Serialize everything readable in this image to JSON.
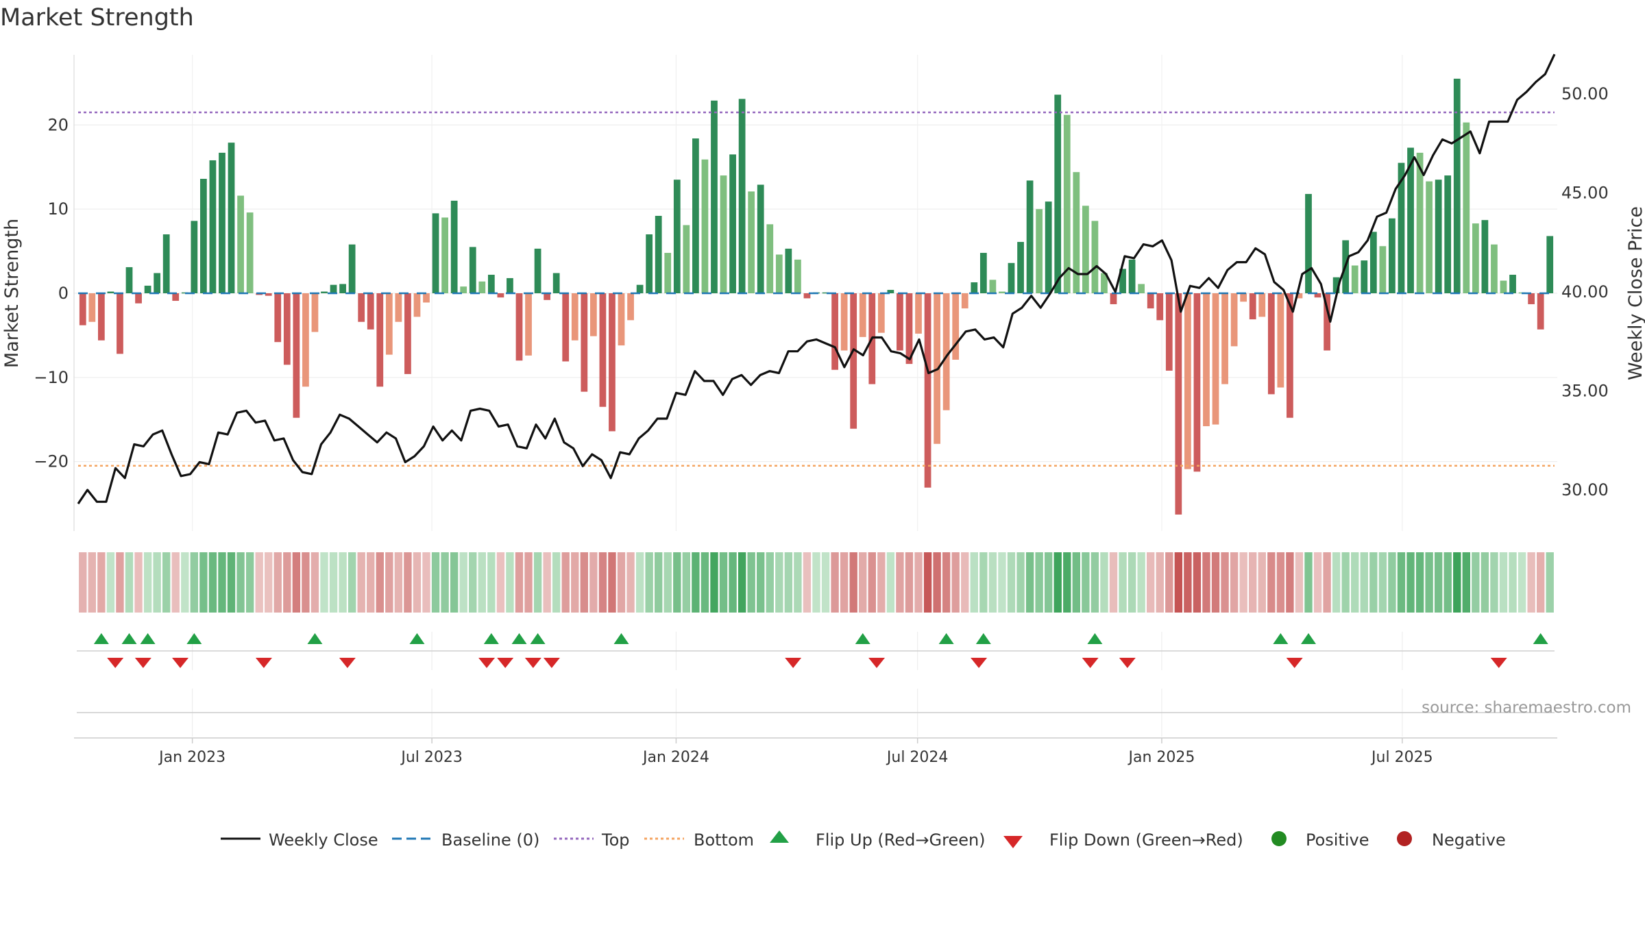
{
  "title": "Market Strength",
  "source": "source: sharemaestro.com",
  "chart_data": {
    "type": "bar+line",
    "title": "Market Strength",
    "ylabel_left": "Market Strength",
    "ylabel_right": "Weekly Close Price",
    "left_ylim": [
      -28,
      28
    ],
    "right_ylim": [
      28.0,
      51.0
    ],
    "left_yticks": [
      20,
      10,
      0,
      -10,
      -20
    ],
    "left_ytick_labels": [
      "20",
      "10",
      "0",
      "−10",
      "−20"
    ],
    "right_yticks": [
      50,
      45,
      40,
      35,
      30
    ],
    "right_ytick_labels": [
      "50.00",
      "45.00",
      "40.00",
      "35.00",
      "30.00"
    ],
    "top_level": 21.5,
    "bottom_level": -20.5,
    "x_start": "2022-10-10",
    "x_ticks": [
      {
        "label": "Jan 2023",
        "week": 12.3
      },
      {
        "label": "Jul 2023",
        "week": 38.1
      },
      {
        "label": "Jan 2024",
        "week": 64.4
      },
      {
        "label": "Jul 2024",
        "week": 90.4
      },
      {
        "label": "Jan 2025",
        "week": 116.7
      },
      {
        "label": "Jul 2025",
        "week": 142.6
      }
    ],
    "strength": [
      -3.8,
      -3.4,
      -5.6,
      0.2,
      -7.2,
      3.1,
      -1.2,
      0.9,
      2.4,
      7.0,
      -0.9,
      0.1,
      8.6,
      13.6,
      15.8,
      16.7,
      17.9,
      11.6,
      9.6,
      -0.2,
      -0.3,
      -5.8,
      -8.5,
      -14.8,
      -11.1,
      -4.6,
      0.2,
      1.0,
      1.1,
      5.8,
      -3.4,
      -4.3,
      -11.1,
      -7.3,
      -3.4,
      -9.6,
      -2.8,
      -1.1,
      9.5,
      9.0,
      11.0,
      0.8,
      5.5,
      1.4,
      2.2,
      -0.5,
      1.8,
      -8.0,
      -7.4,
      5.3,
      -0.8,
      2.4,
      -8.1,
      -5.6,
      -11.7,
      -5.1,
      -13.5,
      -16.4,
      -6.2,
      -3.2,
      1.0,
      7.0,
      9.2,
      4.8,
      13.5,
      8.1,
      18.4,
      15.9,
      22.9,
      14.0,
      16.5,
      23.1,
      12.1,
      12.9,
      8.2,
      4.6,
      5.3,
      4.0,
      -0.6,
      0.1,
      0.1,
      -9.1,
      -6.8,
      -16.1,
      -5.2,
      -10.8,
      -4.7,
      0.4,
      -6.8,
      -8.4,
      -4.8,
      -23.1,
      -17.9,
      -13.9,
      -7.9,
      -1.8,
      1.3,
      4.8,
      1.6,
      0.2,
      3.6,
      6.1,
      13.4,
      10.0,
      10.9,
      23.6,
      21.2,
      14.4,
      10.4,
      8.6,
      2.4,
      -1.3,
      2.9,
      4.0,
      1.1,
      -1.8,
      -3.2,
      -9.2,
      -26.3,
      -20.9,
      -21.2,
      -15.8,
      -15.6,
      -10.8,
      -6.3,
      -1.0,
      -3.1,
      -2.8,
      -12.0,
      -11.2,
      -14.8,
      -0.6,
      11.8,
      -0.5,
      -6.8,
      1.9,
      6.3,
      3.3,
      3.9,
      7.3,
      5.6,
      8.9,
      15.5,
      17.3,
      16.7,
      13.3,
      13.5,
      14.0,
      25.5,
      20.3,
      8.3,
      8.7,
      5.8,
      1.5,
      2.2,
      0.1,
      -1.3,
      -4.3,
      6.8
    ],
    "weekly_close": [
      29.3,
      30.0,
      29.4,
      29.4,
      31.1,
      30.6,
      32.3,
      32.2,
      32.8,
      33.0,
      31.8,
      30.7,
      30.8,
      31.4,
      31.3,
      32.9,
      32.8,
      33.9,
      34.0,
      33.4,
      33.5,
      32.5,
      32.6,
      31.5,
      30.9,
      30.8,
      32.3,
      32.9,
      33.8,
      33.6,
      33.2,
      32.8,
      32.4,
      32.9,
      32.6,
      31.4,
      31.7,
      32.2,
      33.2,
      32.5,
      33.0,
      32.5,
      34.0,
      34.1,
      34.0,
      33.2,
      33.3,
      32.2,
      32.1,
      33.3,
      32.6,
      33.6,
      32.4,
      32.1,
      31.2,
      31.8,
      31.5,
      30.6,
      31.9,
      31.8,
      32.6,
      33.0,
      33.6,
      33.6,
      34.9,
      34.8,
      36.0,
      35.5,
      35.5,
      34.8,
      35.6,
      35.8,
      35.3,
      35.8,
      36.0,
      35.9,
      37.0,
      37.0,
      37.5,
      37.6,
      37.4,
      37.2,
      36.2,
      37.1,
      36.8,
      37.7,
      37.7,
      37.0,
      36.9,
      36.6,
      37.6,
      35.9,
      36.1,
      36.8,
      37.4,
      38.0,
      38.1,
      37.6,
      37.7,
      37.2,
      38.9,
      39.2,
      39.8,
      39.2,
      39.9,
      40.7,
      41.2,
      40.9,
      40.9,
      41.3,
      40.9,
      40.0,
      41.8,
      41.7,
      42.4,
      42.3,
      42.6,
      41.6,
      39.0,
      40.3,
      40.2,
      40.7,
      40.2,
      41.1,
      41.5,
      41.5,
      42.2,
      41.9,
      40.5,
      40.1,
      39.0,
      40.9,
      41.2,
      40.4,
      38.5,
      40.5,
      41.8,
      42.0,
      42.6,
      43.8,
      44.0,
      45.2,
      45.9,
      46.8,
      45.9,
      46.9,
      47.7,
      47.5,
      47.8,
      48.1,
      47.0,
      48.6,
      48.6,
      48.6,
      49.7,
      50.1,
      50.6,
      51.0,
      52.0
    ],
    "flip_up_weeks": [
      2.5,
      5.5,
      7.5,
      12.5,
      25.5,
      36.5,
      44.5,
      47.5,
      49.5,
      58.5,
      84.5,
      93.5,
      97.5,
      109.5,
      129.5,
      132.5,
      157.5
    ],
    "flip_down_weeks": [
      4.0,
      7.0,
      11.0,
      20.0,
      29.0,
      44.0,
      46.0,
      49.0,
      51.0,
      77.0,
      86.0,
      97.0,
      109.0,
      113.0,
      131.0,
      153.0
    ],
    "legend": [
      "Weekly Close",
      "Baseline (0)",
      "Top",
      "Bottom",
      "Flip Up (Red→Green)",
      "Flip Down (Green→Red)",
      "Positive",
      "Negative"
    ],
    "colors": {
      "pos_strong": "#2e8b57",
      "pos_weak": "#7fbf7f",
      "neg_strong": "#cd5c5c",
      "neg_weak": "#e9967a",
      "close_line": "#111111",
      "baseline": "#1f77b4",
      "top_line": "#9467bd",
      "bottom_line": "#f4a460",
      "flip_up": "#22a046",
      "flip_down": "#d62728",
      "positive_dot": "#228b22",
      "negative_dot": "#b22222"
    }
  }
}
